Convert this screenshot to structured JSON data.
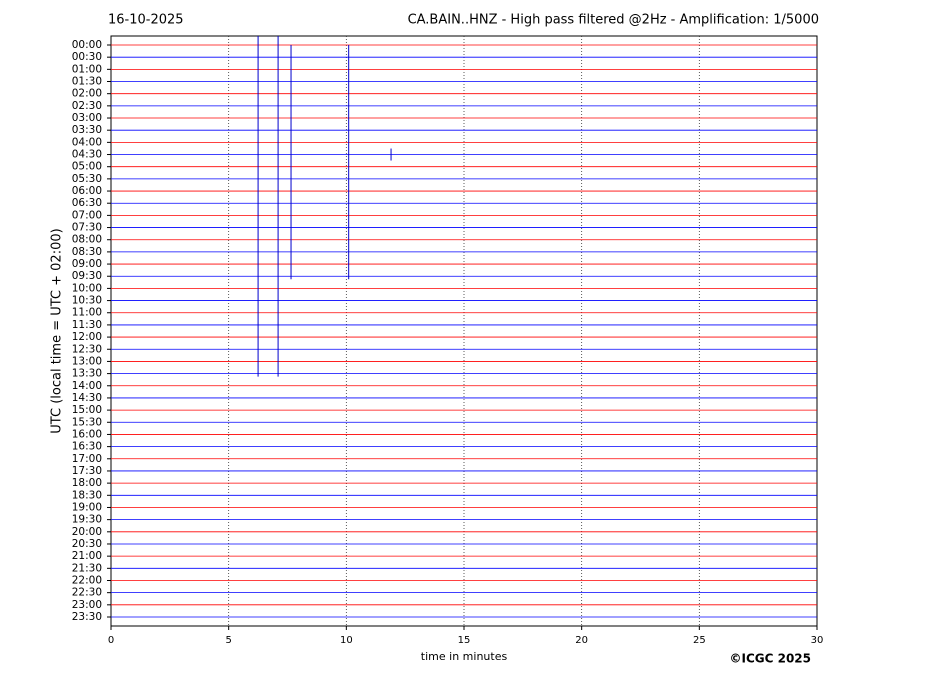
{
  "chart_data": {
    "type": "helicorder",
    "title_left": "16-10-2025",
    "title": "CA.BAIN..HNZ - High pass filtered @2Hz - Amplification: 1/5000",
    "ylabel": "UTC (local time = UTC + 02:00)",
    "xlabel": "time in minutes",
    "copyright": "©ICGC 2025",
    "categories": [
      "00:00",
      "00:30",
      "01:00",
      "01:30",
      "02:00",
      "02:30",
      "03:00",
      "03:30",
      "04:00",
      "04:30",
      "05:00",
      "05:30",
      "06:00",
      "06:30",
      "07:00",
      "07:30",
      "08:00",
      "08:30",
      "09:00",
      "09:30",
      "10:00",
      "10:30",
      "11:00",
      "11:30",
      "12:00",
      "12:30",
      "13:00",
      "13:30",
      "14:00",
      "14:30",
      "15:00",
      "15:30",
      "16:00",
      "16:30",
      "17:00",
      "17:30",
      "18:00",
      "18:30",
      "19:00",
      "19:30",
      "20:00",
      "20:30",
      "21:00",
      "21:30",
      "22:00",
      "22:30",
      "23:00",
      "23:30"
    ],
    "colors": [
      "#ff0000",
      "#0000ff"
    ],
    "xlim": [
      0,
      30
    ],
    "xticks": [
      0,
      5,
      10,
      15,
      20,
      25,
      30
    ],
    "grid": true,
    "spikes": [
      {
        "x": 6.25,
        "from": "00:00",
        "to": "13:30"
      },
      {
        "x": 7.1,
        "from": "00:00",
        "to": "13:30"
      },
      {
        "x": 7.65,
        "from": "00:30",
        "to": "09:30"
      },
      {
        "x": 10.1,
        "from": "00:30",
        "to": "09:30"
      },
      {
        "x": 11.9,
        "from": "04:30",
        "to": "04:30"
      }
    ]
  }
}
